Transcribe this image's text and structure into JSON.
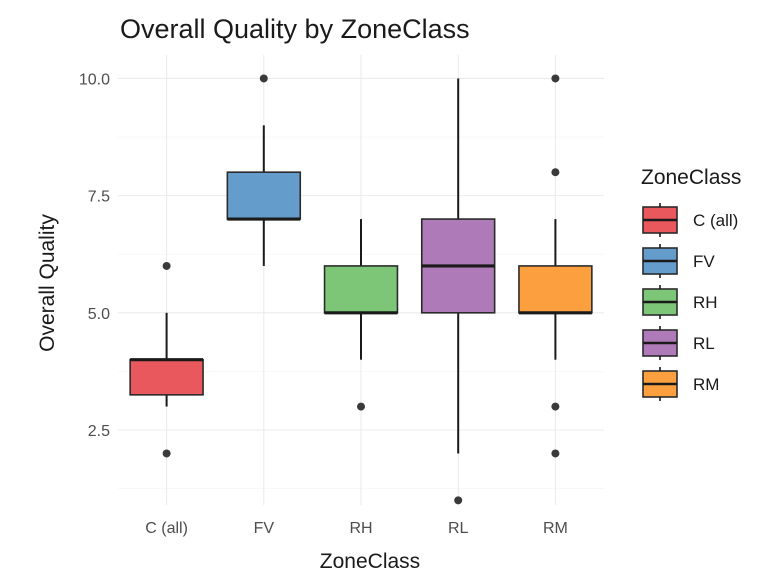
{
  "chart_data": {
    "type": "boxplot",
    "title": "Overall Quality by ZoneClass",
    "xlabel": "ZoneClass",
    "ylabel": "Overall Quality",
    "categories": [
      "C (all)",
      "FV",
      "RH",
      "RL",
      "RM"
    ],
    "ylim": [
      0.9,
      10.5
    ],
    "yticks": [
      2.5,
      5.0,
      7.5,
      10.0
    ],
    "ytick_labels": [
      "2.5",
      "5.0",
      "7.5",
      "10.0"
    ],
    "grid": true,
    "legend": {
      "title": "ZoneClass",
      "position": "right"
    },
    "boxes": [
      {
        "category": "C (all)",
        "min": 3,
        "q1": 3.25,
        "median": 4,
        "q3": 4,
        "max": 5,
        "outliers": [
          2,
          6
        ],
        "color": "#E9585C"
      },
      {
        "category": "FV",
        "min": 6,
        "q1": 7,
        "median": 7,
        "q3": 8,
        "max": 9,
        "outliers": [
          10
        ],
        "color": "#649DCC"
      },
      {
        "category": "RH",
        "min": 4,
        "q1": 5,
        "median": 5,
        "q3": 6,
        "max": 7,
        "outliers": [
          3
        ],
        "color": "#7DC678"
      },
      {
        "category": "RL",
        "min": 2,
        "q1": 5,
        "median": 6,
        "q3": 7,
        "max": 10,
        "outliers": [
          1
        ],
        "color": "#AF7AB8"
      },
      {
        "category": "RM",
        "min": 4,
        "q1": 5,
        "median": 5,
        "q3": 6,
        "max": 7,
        "outliers": [
          2,
          3,
          8,
          10
        ],
        "color": "#FC9F3F"
      }
    ]
  }
}
